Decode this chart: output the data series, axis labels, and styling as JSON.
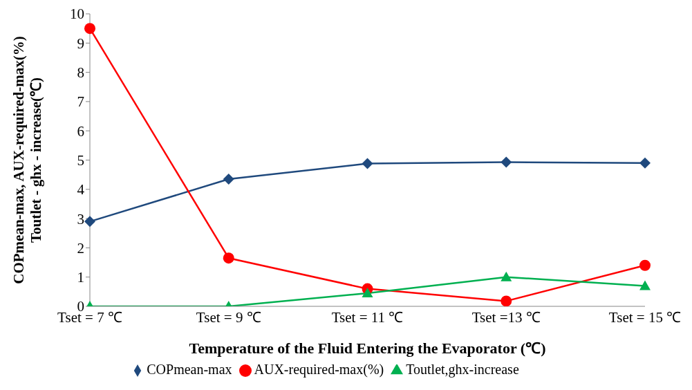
{
  "chart_data": {
    "type": "line",
    "xlabel": "Temperature of the Fluid Entering the Evaporator (℃)",
    "ylabel": "COPmean-max, AUX-required-max(%) Toutlet - ghx - increase(℃)",
    "categories": [
      "Tset = 7 ℃",
      "Tset = 9 ℃",
      "Tset = 11 ℃",
      "Tset =13 ℃",
      "Tset = 15  ℃"
    ],
    "series": [
      {
        "name": "COPmean-max",
        "color": "#1f497d",
        "marker": "diamond",
        "values": [
          2.9,
          4.35,
          4.88,
          4.93,
          4.9
        ]
      },
      {
        "name": "AUX-required-max(%)",
        "color": "#ff0000",
        "marker": "circle",
        "values": [
          9.5,
          1.65,
          0.6,
          0.18,
          1.4
        ]
      },
      {
        "name": "Toutlet,ghx-increase",
        "color": "#00b050",
        "marker": "triangle",
        "values": [
          0,
          0,
          0.45,
          1.0,
          0.7
        ]
      }
    ],
    "ylim": [
      0,
      10
    ],
    "yticks": [
      0,
      1,
      2,
      3,
      4,
      5,
      6,
      7,
      8,
      9,
      10
    ],
    "grid": false,
    "legend": "bottom"
  }
}
